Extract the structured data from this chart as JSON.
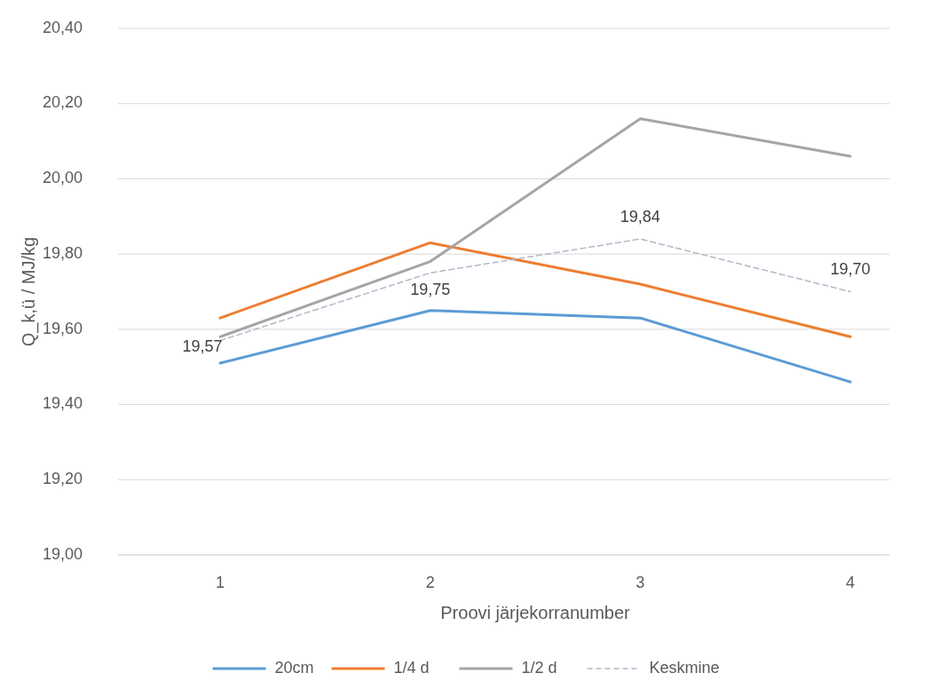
{
  "chart_data": {
    "type": "line",
    "xlabel": "Proovi järjekorranumber",
    "ylabel": "Q_k,ü / MJ/kg",
    "categories": [
      "1",
      "2",
      "3",
      "4"
    ],
    "ylim": [
      19,
      20.4
    ],
    "yticks": [
      {
        "value": 19,
        "label": "19,00"
      },
      {
        "value": 19.2,
        "label": "19,20"
      },
      {
        "value": 19.4,
        "label": "19,40"
      },
      {
        "value": 19.6,
        "label": "19,60"
      },
      {
        "value": 19.8,
        "label": "19,80"
      },
      {
        "value": 20,
        "label": "20,00"
      },
      {
        "value": 20.2,
        "label": "20,20"
      },
      {
        "value": 20.4,
        "label": "20,40"
      }
    ],
    "grid": "y",
    "legend": "bottom",
    "marker": "none",
    "series": [
      {
        "name": "20cm",
        "color": "#5b9bd5",
        "values": [
          19.51,
          19.65,
          19.63,
          19.46
        ]
      },
      {
        "name": "1/4 d",
        "color": "#ed7d31",
        "values": [
          19.63,
          19.83,
          19.72,
          19.58
        ]
      },
      {
        "name": "1/2 d",
        "color": "#a5a5a5",
        "values": [
          19.58,
          19.78,
          20.16,
          20.06
        ]
      },
      {
        "name": "Keskmine",
        "color": "#b4b7c9",
        "line_style": "dashed",
        "values": [
          19.57,
          19.75,
          19.84,
          19.7
        ],
        "value_labels": [
          "19,57",
          "19,75",
          "19,84",
          "19,70"
        ]
      }
    ]
  }
}
